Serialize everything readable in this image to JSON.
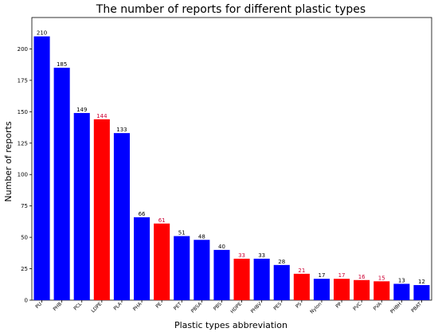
{
  "chart_data": {
    "type": "bar",
    "title": "The number of reports for different plastic types",
    "xlabel": "Plastic types abbreviation",
    "ylabel": "Number of reports",
    "categories": [
      "PU",
      "PHB",
      "PCL",
      "LDPE",
      "PLA",
      "PHA",
      "PE",
      "PET",
      "PBSA",
      "PBS",
      "HDPE",
      "PHBV",
      "PES",
      "PS",
      "Nylon",
      "PP",
      "PVC",
      "PVA",
      "PHBH",
      "PBAT"
    ],
    "values": [
      210,
      185,
      149,
      144,
      133,
      66,
      61,
      51,
      48,
      40,
      33,
      33,
      28,
      21,
      17,
      17,
      16,
      15,
      13,
      12
    ],
    "highlighted": [
      false,
      false,
      false,
      true,
      false,
      false,
      true,
      false,
      false,
      false,
      true,
      false,
      false,
      true,
      false,
      true,
      true,
      true,
      false,
      false
    ],
    "colors": {
      "default": "#0000ff",
      "highlight": "#ff0000"
    },
    "ylim": [
      0,
      225
    ],
    "yticks": [
      0,
      25,
      50,
      75,
      100,
      125,
      150,
      175,
      200
    ],
    "grid": false
  }
}
